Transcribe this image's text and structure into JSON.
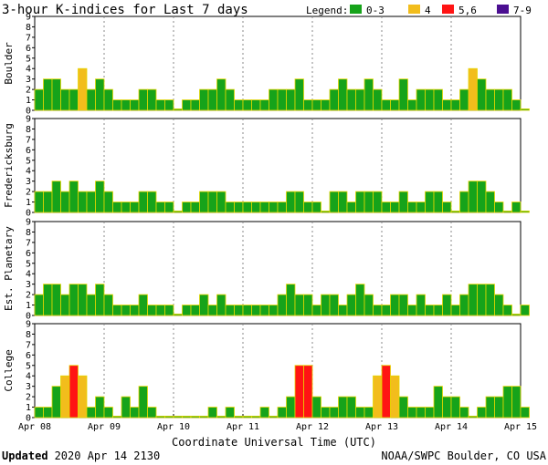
{
  "chart_data": {
    "type": "bar",
    "title": "3-hour K-indices for Last 7 days",
    "legend": {
      "label": "Legend:",
      "placement": "top-right",
      "entries": [
        {
          "label": "0-3",
          "color": "#16a31a"
        },
        {
          "label": "4",
          "color": "#f2bd1c"
        },
        {
          "label": "5,6",
          "color": "#ff1414"
        },
        {
          "label": "7-9",
          "color": "#4b0f91"
        }
      ]
    },
    "colors": {
      "low": "#16a31a",
      "moderate": "#f2bd1c",
      "high": "#ff1414",
      "extreme": "#4b0f91",
      "bar_outline": "#e6d600"
    },
    "ylim": [
      0,
      9
    ],
    "yticks": [
      "0",
      "1",
      "2",
      "3",
      "4",
      "5",
      "6",
      "7",
      "8",
      "9"
    ],
    "xlabel": "Coordinate Universal Time (UTC)",
    "xticks": [
      "Apr 08",
      "Apr 09",
      "Apr 10",
      "Apr 11",
      "Apr 12",
      "Apr 13",
      "Apr 14",
      "Apr 15"
    ],
    "panels": [
      {
        "name": "Boulder",
        "values": [
          2,
          3,
          3,
          2,
          2,
          4,
          2,
          3,
          2,
          1,
          1,
          1,
          2,
          2,
          1,
          1,
          0,
          1,
          1,
          2,
          2,
          3,
          2,
          1,
          1,
          1,
          1,
          2,
          2,
          2,
          3,
          1,
          1,
          1,
          2,
          3,
          2,
          2,
          3,
          2,
          1,
          1,
          3,
          1,
          2,
          2,
          2,
          1,
          1,
          2,
          4,
          3,
          2,
          2,
          2,
          1,
          0
        ]
      },
      {
        "name": "Fredericksburg",
        "values": [
          2,
          2,
          3,
          2,
          3,
          2,
          2,
          3,
          2,
          1,
          1,
          1,
          2,
          2,
          1,
          1,
          0,
          1,
          1,
          2,
          2,
          2,
          1,
          1,
          1,
          1,
          1,
          1,
          1,
          2,
          2,
          1,
          1,
          0,
          2,
          2,
          1,
          2,
          2,
          2,
          1,
          1,
          2,
          1,
          1,
          2,
          2,
          1,
          0,
          2,
          3,
          3,
          2,
          1,
          0,
          1,
          0
        ]
      },
      {
        "name": "Est. Planetary",
        "values": [
          2,
          3,
          3,
          2,
          3,
          3,
          2,
          3,
          2,
          1,
          1,
          1,
          2,
          1,
          1,
          1,
          0,
          1,
          1,
          2,
          1,
          2,
          1,
          1,
          1,
          1,
          1,
          1,
          2,
          3,
          2,
          2,
          1,
          2,
          2,
          1,
          2,
          3,
          2,
          1,
          1,
          2,
          2,
          1,
          2,
          1,
          1,
          2,
          1,
          2,
          3,
          3,
          3,
          2,
          1,
          0,
          1
        ]
      },
      {
        "name": "College",
        "values": [
          1,
          1,
          3,
          4,
          5,
          4,
          1,
          2,
          1,
          0,
          2,
          1,
          3,
          1,
          0,
          0,
          0,
          0,
          0,
          0,
          1,
          0,
          1,
          0,
          0,
          0,
          1,
          0,
          1,
          2,
          5,
          5,
          2,
          1,
          1,
          2,
          2,
          1,
          1,
          4,
          5,
          4,
          2,
          1,
          1,
          1,
          3,
          2,
          2,
          1,
          0,
          1,
          2,
          2,
          3,
          3,
          1
        ]
      }
    ]
  },
  "footer": {
    "updated_label": "Updated",
    "updated_value": "2020 Apr 14 2130",
    "source": "NOAA/SWPC Boulder, CO USA"
  }
}
